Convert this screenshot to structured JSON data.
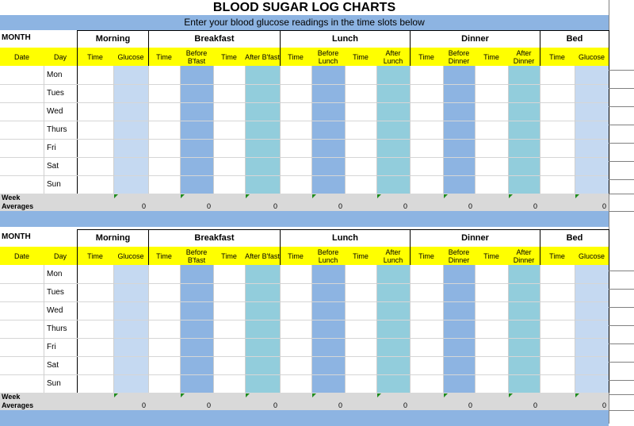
{
  "title": "BLOOD SUGAR LOG CHARTS",
  "subtitle": "Enter your blood glucose readings in the time slots below",
  "month_label": "MONTH",
  "groups": [
    "Morning",
    "Breakfast",
    "Lunch",
    "Dinner",
    "Bed"
  ],
  "columns": [
    "Date",
    "Day",
    "Time",
    "Glucose",
    "Time",
    "Before B'fast",
    "Time",
    "After B'fast",
    "Time",
    "Before Lunch",
    "Time",
    "After Lunch",
    "Time",
    "Before Dinner",
    "Time",
    "After Dinner",
    "Time",
    "Glucose"
  ],
  "days": [
    "Mon",
    "Tues",
    "Wed",
    "Thurs",
    "Fri",
    "Sat",
    "Sun"
  ],
  "averages_label": [
    "Week",
    "Averages"
  ],
  "average_values": [
    "0",
    "0",
    "0",
    "0",
    "0",
    "0",
    "0",
    "0"
  ],
  "colors": {
    "light_blue": "#c5d9f1",
    "mid_blue": "#8db4e2",
    "teal": "#92cddc",
    "yellow": "#ffff00",
    "bar": "#8db4e2",
    "avg": "#d9d9d9"
  }
}
